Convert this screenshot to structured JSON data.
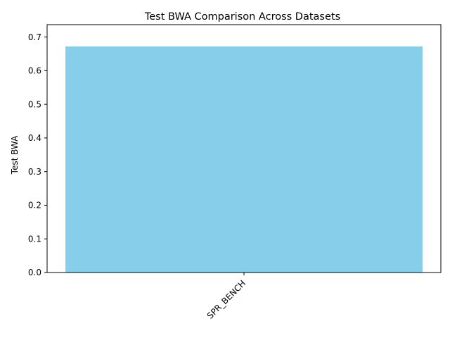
{
  "chart_data": {
    "type": "bar",
    "title": "Test BWA Comparison Across Datasets",
    "xlabel": "",
    "ylabel": "Test BWA",
    "categories": [
      "SPR_BENCH"
    ],
    "values": [
      0.672
    ],
    "ylim": [
      0,
      0.7
    ],
    "yticks": [
      0.0,
      0.1,
      0.2,
      0.3,
      0.4,
      0.5,
      0.6,
      0.7
    ],
    "ytick_labels": [
      "0.0",
      "0.1",
      "0.2",
      "0.3",
      "0.4",
      "0.5",
      "0.6",
      "0.7"
    ],
    "bar_color": "#87ceeb",
    "grid": false,
    "legend": false
  }
}
